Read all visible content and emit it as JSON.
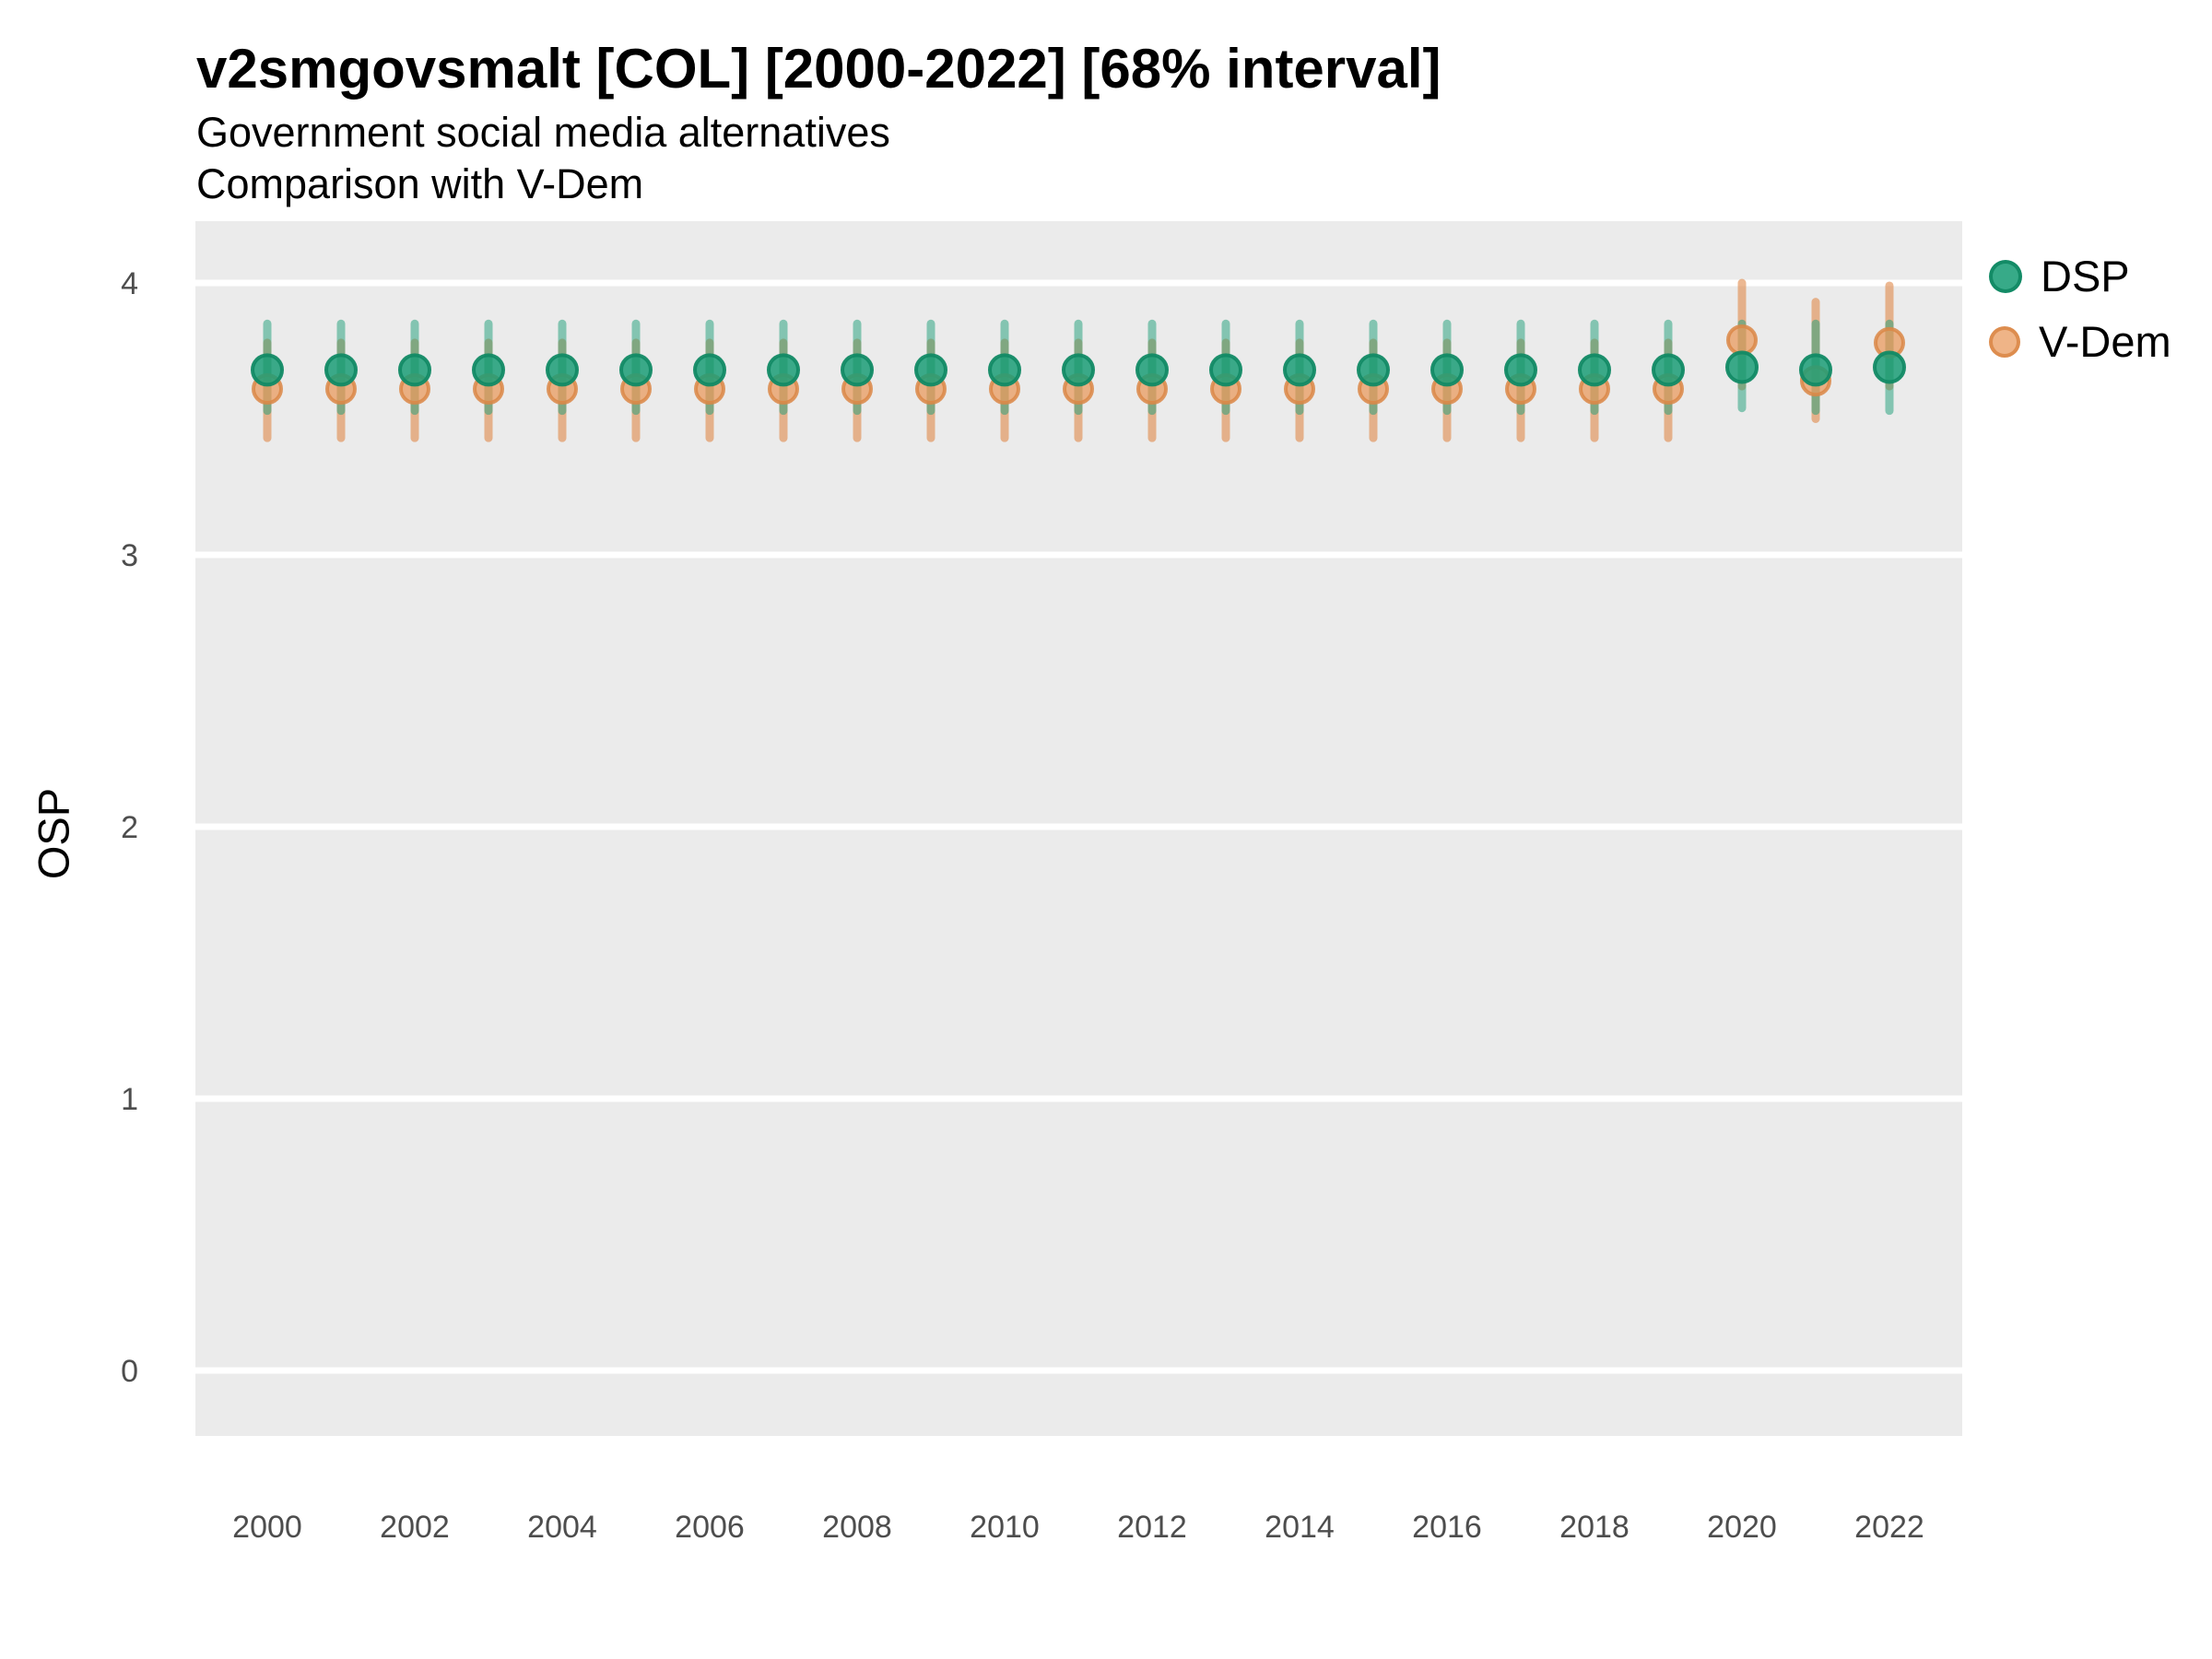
{
  "header": {
    "title": "v2smgovsmalt [COL] [2000-2022] [68% interval]",
    "subtitle1": "Government social media alternatives",
    "subtitle2": "Comparison with V-Dem"
  },
  "legend": {
    "items": [
      {
        "label": "DSP",
        "color": "#1B9E77"
      },
      {
        "label": "V-Dem",
        "color": "#E28A50"
      }
    ]
  },
  "chart_data": {
    "type": "scatter",
    "subtype": "pointrange-comparison",
    "title": "v2smgovsmalt [COL] [2000-2022] [68% interval]",
    "xlabel": "",
    "ylabel": "OSP",
    "x": [
      2000,
      2001,
      2002,
      2003,
      2004,
      2005,
      2006,
      2007,
      2008,
      2009,
      2010,
      2011,
      2012,
      2013,
      2014,
      2015,
      2016,
      2017,
      2018,
      2019,
      2020,
      2021,
      2022
    ],
    "series": [
      {
        "name": "DSP",
        "color": "#1B9E77",
        "est": [
          3.68,
          3.68,
          3.68,
          3.68,
          3.68,
          3.68,
          3.68,
          3.68,
          3.68,
          3.68,
          3.68,
          3.68,
          3.68,
          3.68,
          3.68,
          3.68,
          3.68,
          3.68,
          3.68,
          3.68,
          3.69,
          3.68,
          3.69
        ],
        "lo": [
          3.53,
          3.53,
          3.53,
          3.53,
          3.53,
          3.53,
          3.53,
          3.53,
          3.53,
          3.53,
          3.53,
          3.53,
          3.53,
          3.53,
          3.53,
          3.53,
          3.53,
          3.53,
          3.53,
          3.53,
          3.54,
          3.53,
          3.53
        ],
        "hi": [
          3.85,
          3.85,
          3.85,
          3.85,
          3.85,
          3.85,
          3.85,
          3.85,
          3.85,
          3.85,
          3.85,
          3.85,
          3.85,
          3.85,
          3.85,
          3.85,
          3.85,
          3.85,
          3.85,
          3.85,
          3.85,
          3.85,
          3.85
        ]
      },
      {
        "name": "V-Dem",
        "color": "#E28A50",
        "est": [
          3.61,
          3.61,
          3.61,
          3.61,
          3.61,
          3.61,
          3.61,
          3.61,
          3.61,
          3.61,
          3.61,
          3.61,
          3.61,
          3.61,
          3.61,
          3.61,
          3.61,
          3.61,
          3.61,
          3.61,
          3.79,
          3.64,
          3.78
        ],
        "lo": [
          3.43,
          3.43,
          3.43,
          3.43,
          3.43,
          3.43,
          3.43,
          3.43,
          3.43,
          3.43,
          3.43,
          3.43,
          3.43,
          3.43,
          3.43,
          3.43,
          3.43,
          3.43,
          3.43,
          3.43,
          3.62,
          3.5,
          3.62
        ],
        "hi": [
          3.78,
          3.78,
          3.78,
          3.78,
          3.78,
          3.78,
          3.78,
          3.78,
          3.78,
          3.78,
          3.78,
          3.78,
          3.78,
          3.78,
          3.78,
          3.78,
          3.78,
          3.78,
          3.78,
          3.78,
          4.0,
          3.93,
          3.99
        ]
      }
    ],
    "xticks": [
      2000,
      2002,
      2004,
      2006,
      2008,
      2010,
      2012,
      2014,
      2016,
      2018,
      2020,
      2022
    ],
    "yticks": [
      0,
      1,
      2,
      3,
      4
    ],
    "ylim": [
      -0.24,
      4.23
    ],
    "xlim": [
      1999,
      2023
    ],
    "grid": "major-only",
    "legend_position": "right",
    "interval_level": "68%",
    "colors": {
      "panel_bg": "#EBEBEB",
      "gridline": "#FFFFFF",
      "tick_text": "#4D4D4D",
      "dsp_line": "rgba(27,158,119,0.5)",
      "vdem_line": "rgba(222,132,68,0.58)",
      "dsp_dot_fill": "rgba(27,158,119,0.85)",
      "dsp_dot_stroke": "rgba(18,138,101,0.95)",
      "vdem_dot_fill": "rgba(233,155,95,0.75)",
      "vdem_dot_stroke": "rgba(219,135,70,0.85)"
    }
  }
}
